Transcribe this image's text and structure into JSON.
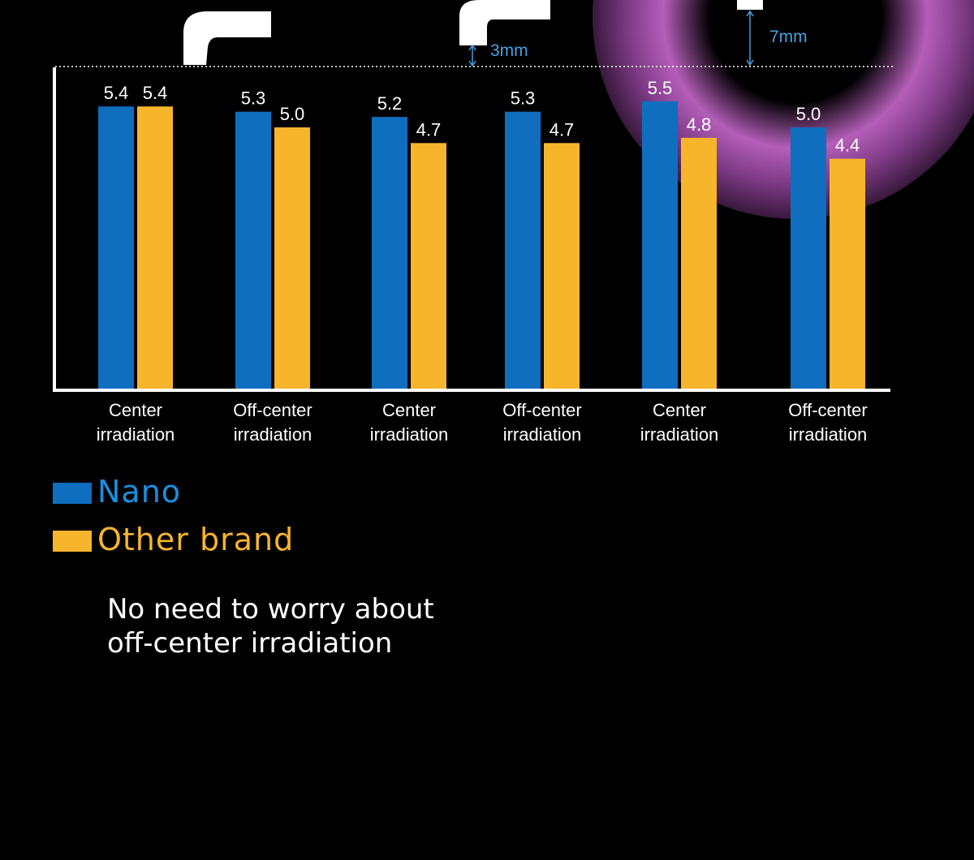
{
  "chart_data": {
    "type": "bar",
    "categories": [
      [
        "Center",
        "irradiation"
      ],
      [
        "Off-center",
        "irradiation"
      ],
      [
        "Center",
        "irradiation"
      ],
      [
        "Off-center",
        "irradiation"
      ],
      [
        "Center",
        "irradiation"
      ],
      [
        "Off-center",
        "irradiation"
      ]
    ],
    "series": [
      {
        "name": "Nano",
        "values": [
          5.4,
          5.3,
          5.2,
          5.3,
          5.5,
          5.0
        ],
        "labels": [
          "5.4",
          "5.3",
          "5.2",
          "5.3",
          "5.5",
          "5.0"
        ]
      },
      {
        "name": "Other brand",
        "values": [
          5.4,
          5.0,
          4.7,
          4.7,
          4.8,
          4.4
        ],
        "labels": [
          "5.4",
          "5.0",
          "4.7",
          "4.7",
          "4.8",
          "4.4"
        ]
      }
    ],
    "annotations": [
      "3mm",
      "7mm"
    ],
    "grid": false,
    "legend_position": "bottom-left"
  },
  "colors": {
    "nano": "#106EBE",
    "other_brand": "#F7B52C",
    "annotation": "#4A9FE0",
    "axis": "#FFFFFF",
    "background": "#000000"
  },
  "legend": {
    "nano_label": "Nano",
    "other_label": "Other brand"
  },
  "caption": {
    "line1": "No need to worry about",
    "line2": "off-center irradiation"
  }
}
